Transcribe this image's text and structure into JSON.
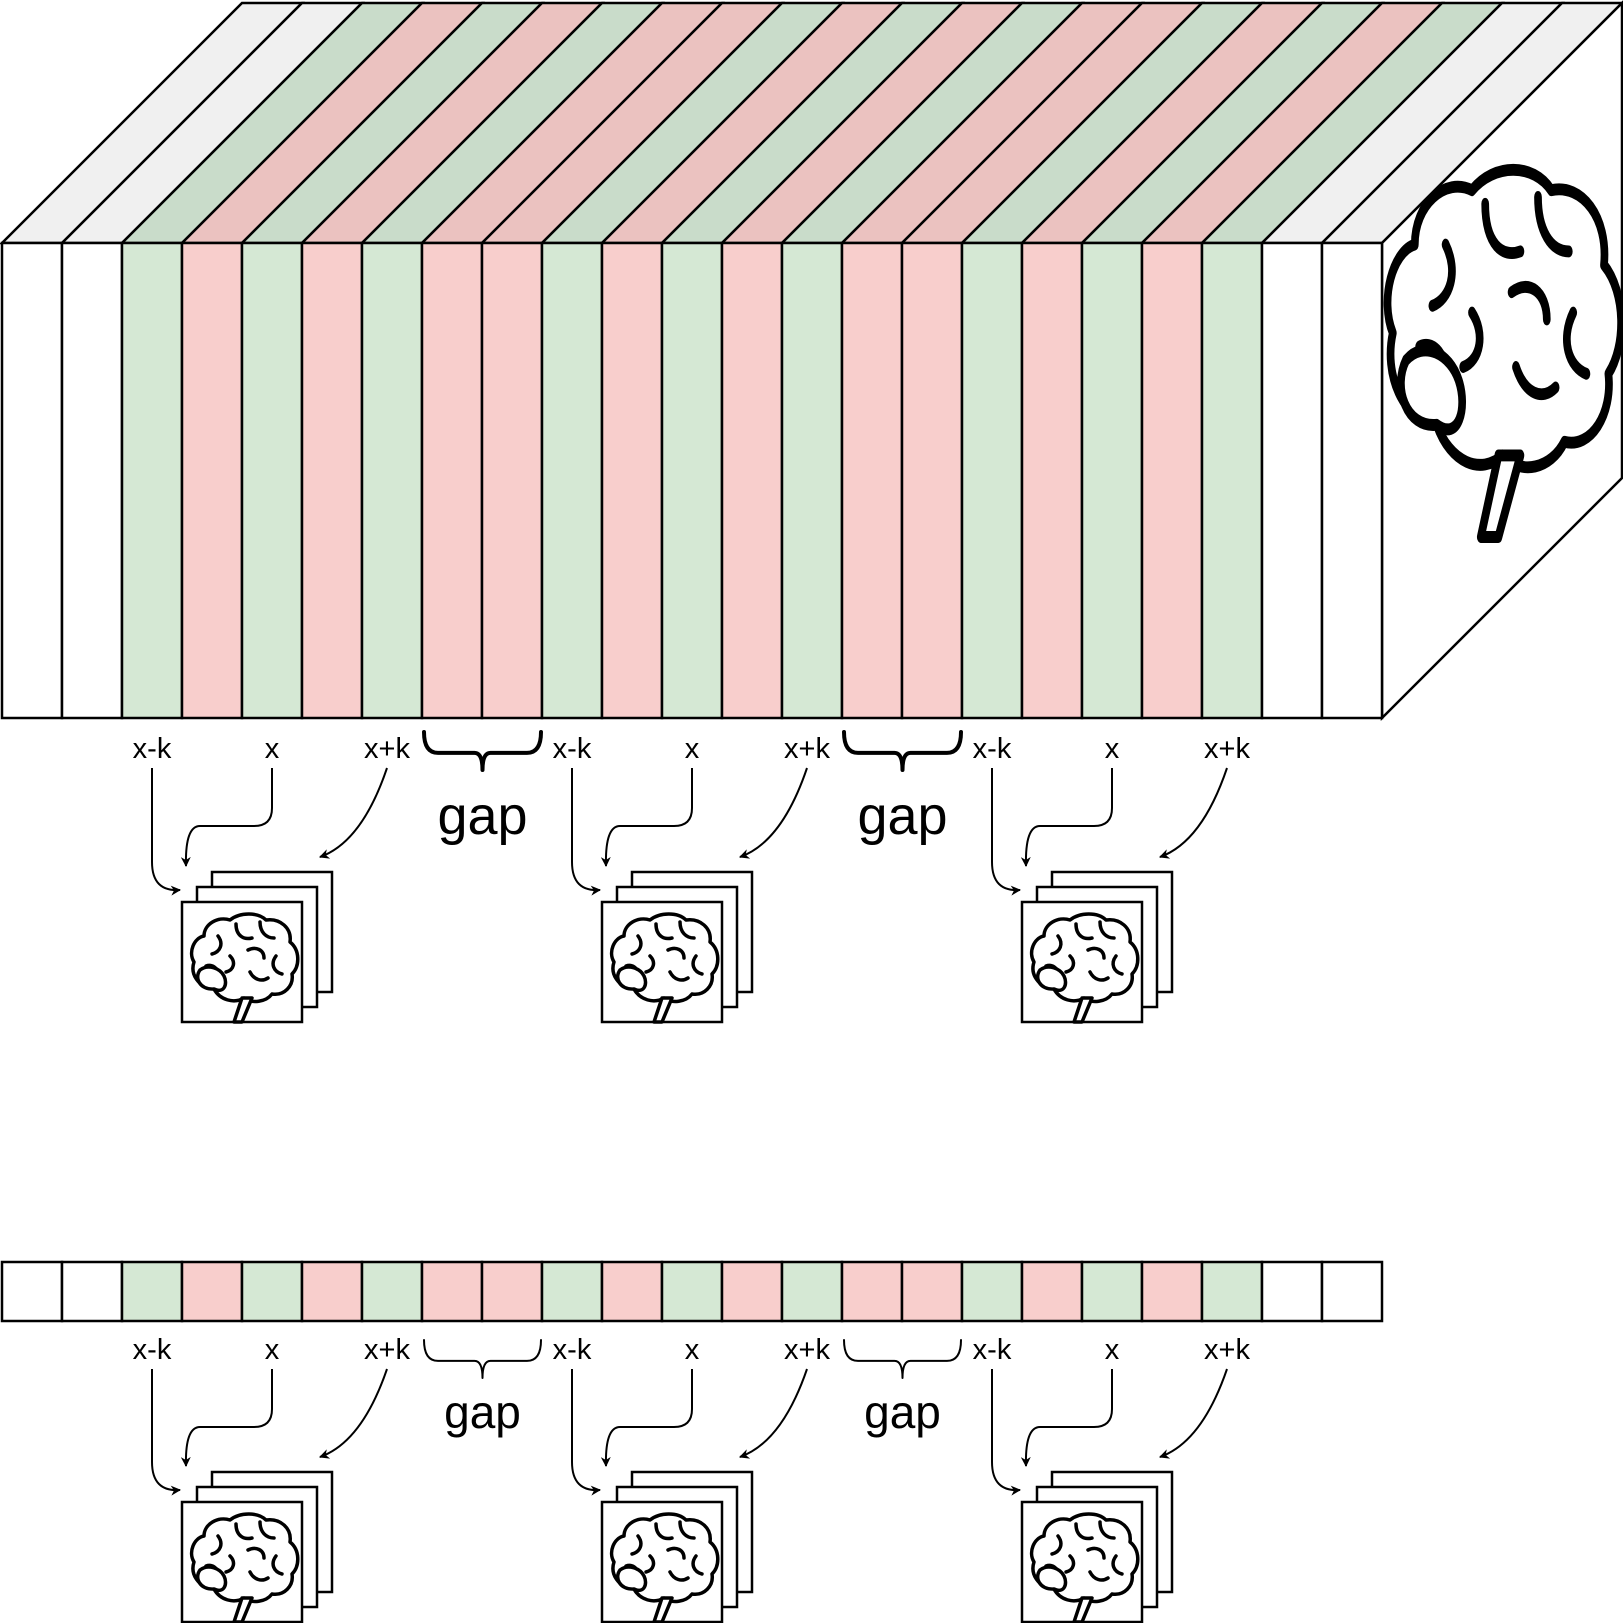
{
  "colors": {
    "empty": "#ffffff",
    "empty_top": "#f0f0f0",
    "sampled": "#d5e8d4",
    "sampled_top": "#c9dcca",
    "skipped": "#f8cecc",
    "skipped_top": "#ebc2c0",
    "stroke": "#000000"
  },
  "slices": [
    "empty",
    "empty",
    "sampled",
    "skipped",
    "sampled",
    "skipped",
    "sampled",
    "skipped",
    "skipped",
    "sampled",
    "skipped",
    "sampled",
    "skipped",
    "sampled",
    "skipped",
    "skipped",
    "sampled",
    "skipped",
    "sampled",
    "skipped",
    "sampled",
    "empty",
    "empty"
  ],
  "groups": [
    {
      "labels": [
        "x-k",
        "x",
        "x+k"
      ],
      "icon": "brain-icon"
    },
    {
      "labels": [
        "x-k",
        "x",
        "x+k"
      ],
      "icon": "brain-icon"
    },
    {
      "labels": [
        "x-k",
        "x",
        "x+k"
      ],
      "icon": "brain-icon"
    }
  ],
  "gaps": [
    "gap",
    "gap"
  ],
  "volume_icon": "brain-icon"
}
